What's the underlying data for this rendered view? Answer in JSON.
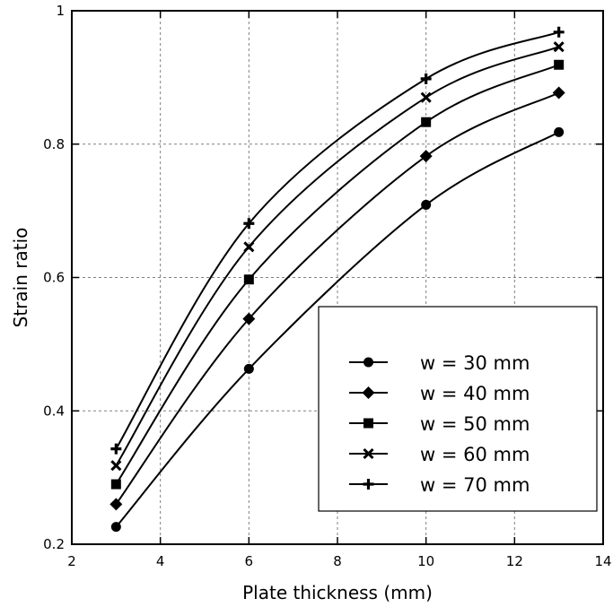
{
  "chart_data": {
    "type": "line",
    "title": "",
    "xlabel": "Plate thickness (mm)",
    "ylabel": "Strain ratio",
    "xlim": [
      2,
      14
    ],
    "ylim": [
      0.2,
      1.0
    ],
    "x_ticks": [
      "2",
      "4",
      "6",
      "8",
      "10",
      "12",
      "14"
    ],
    "y_ticks": [
      "0.2",
      "0.4",
      "0.6",
      "0.8",
      "1"
    ],
    "grid": true,
    "legend_position": "bottom-right",
    "x": [
      3,
      6,
      10,
      13
    ],
    "series": [
      {
        "name": "w = 30 mm",
        "marker": "circle",
        "values": [
          0.226,
          0.463,
          0.709,
          0.818
        ]
      },
      {
        "name": "w = 40 mm",
        "marker": "diamond",
        "values": [
          0.26,
          0.538,
          0.782,
          0.877
        ]
      },
      {
        "name": "w = 50 mm",
        "marker": "square",
        "values": [
          0.29,
          0.597,
          0.833,
          0.919
        ]
      },
      {
        "name": "w = 60 mm",
        "marker": "x",
        "values": [
          0.318,
          0.646,
          0.87,
          0.946
        ]
      },
      {
        "name": "w = 70 mm",
        "marker": "plus",
        "values": [
          0.343,
          0.681,
          0.898,
          0.968
        ]
      }
    ],
    "line_color": "#000000",
    "grid_color": "#808080"
  }
}
